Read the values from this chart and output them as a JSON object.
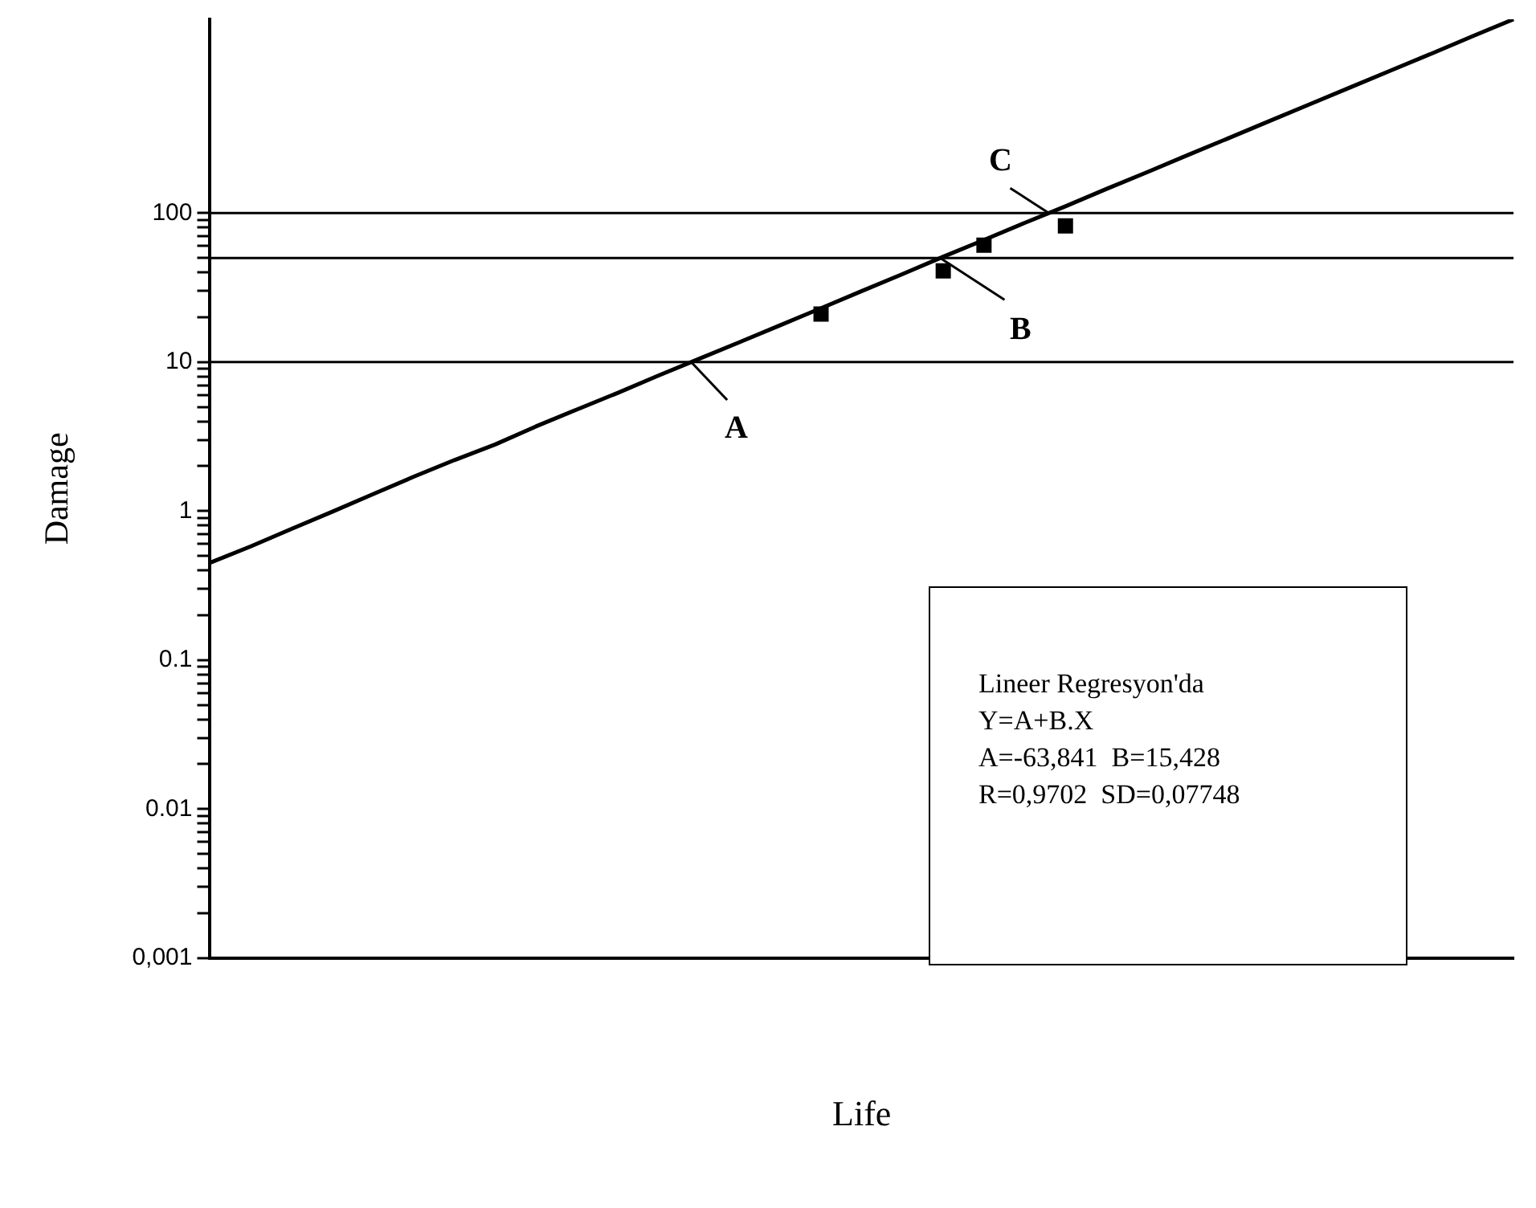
{
  "chart_data": {
    "type": "scatter",
    "xlabel": "Life",
    "ylabel": "Damage",
    "categories": [
      null,
      null,
      null,
      null,
      null,
      null,
      null,
      null,
      null,
      null,
      null,
      null,
      null,
      null,
      null,
      null,
      null,
      null,
      null,
      null,
      null,
      null,
      null,
      null,
      null,
      null,
      null,
      null,
      null,
      null,
      null,
      null,
      null
    ],
    "series": [
      {
        "type": "scatter",
        "color": "#000000",
        "marker": "square",
        "values": [
          null,
          null,
          null,
          null,
          null,
          null,
          null,
          null,
          null,
          null,
          null,
          null,
          null,
          null,
          null,
          21,
          null,
          null,
          41,
          61,
          null,
          82,
          null,
          null,
          null,
          null,
          null,
          null,
          null,
          null,
          null,
          null,
          null
        ]
      },
      {
        "type": "line",
        "color": "#000000",
        "marker": "none",
        "line_style": "solid",
        "values": [
          0.45,
          0.58,
          0.76,
          0.99,
          1.3,
          1.7,
          2.2,
          2.8,
          3.7,
          4.8,
          6.2,
          8.1,
          10.5,
          13.6,
          17.7,
          23,
          30,
          39,
          51,
          66,
          86,
          111,
          145,
          188,
          245,
          318,
          414,
          538,
          700,
          910,
          1180,
          1540,
          2000
        ]
      }
    ],
    "log": "y",
    "ylim": [
      0.001,
      2000
    ],
    "yticks": [
      {
        "value": 0.001,
        "label": "0,001"
      },
      {
        "value": 0.002,
        "label": null
      },
      {
        "value": 0.003,
        "label": null
      },
      {
        "value": 0.004,
        "label": null
      },
      {
        "value": 0.005,
        "label": null
      },
      {
        "value": 0.006,
        "label": null
      },
      {
        "value": 0.007,
        "label": null
      },
      {
        "value": 0.008,
        "label": null
      },
      {
        "value": 0.009,
        "label": null
      },
      {
        "value": 0.01,
        "label": "0.01"
      },
      {
        "value": 0.02,
        "label": null
      },
      {
        "value": 0.03,
        "label": null
      },
      {
        "value": 0.04,
        "label": null
      },
      {
        "value": 0.05,
        "label": null
      },
      {
        "value": 0.06,
        "label": null
      },
      {
        "value": 0.07,
        "label": null
      },
      {
        "value": 0.08,
        "label": null
      },
      {
        "value": 0.09,
        "label": null
      },
      {
        "value": 0.1,
        "label": "0.1"
      },
      {
        "value": 0.2,
        "label": null
      },
      {
        "value": 0.3,
        "label": null
      },
      {
        "value": 0.4,
        "label": null
      },
      {
        "value": 0.5,
        "label": null
      },
      {
        "value": 0.6,
        "label": null
      },
      {
        "value": 0.7,
        "label": null
      },
      {
        "value": 0.8,
        "label": null
      },
      {
        "value": 0.9,
        "label": null
      },
      1,
      {
        "value": 2,
        "label": null
      },
      {
        "value": 3,
        "label": null
      },
      {
        "value": 4,
        "label": null
      },
      {
        "value": 5,
        "label": null
      },
      {
        "value": 6,
        "label": null
      },
      {
        "value": 7,
        "label": null
      },
      {
        "value": 8,
        "label": null
      },
      {
        "value": 9,
        "label": null
      },
      10,
      {
        "value": 20,
        "label": null
      },
      {
        "value": 30,
        "label": null
      },
      {
        "value": 40,
        "label": null
      },
      {
        "value": 50,
        "label": null
      },
      {
        "value": 60,
        "label": null
      },
      {
        "value": 70,
        "label": null
      },
      {
        "value": 80,
        "label": null
      },
      {
        "value": 90,
        "label": null
      },
      100
    ],
    "grid": false,
    "legend": false,
    "ref_lines": [
      {
        "axis": "y",
        "value": 100,
        "color": "#000000"
      },
      {
        "axis": "y",
        "value": 50,
        "color": "#000000"
      },
      {
        "axis": "y",
        "value": 10,
        "color": "#000000"
      }
    ],
    "annotations": [
      {
        "text": "A",
        "y": 10
      },
      {
        "text": "B",
        "y": 50
      },
      {
        "text": "C",
        "y": 100
      },
      "Lineer Regresyon'da",
      "Y=A+B.X",
      "A=-63,841  B=15,428",
      "R=0,9702  SD=0,07748"
    ]
  }
}
